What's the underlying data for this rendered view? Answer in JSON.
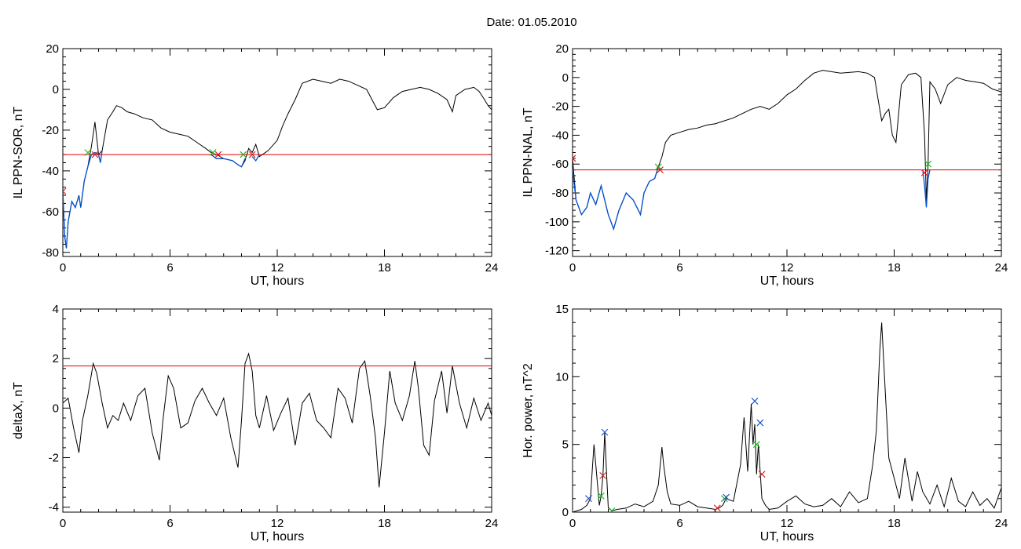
{
  "title": "Date:  01.05.2010",
  "colors": {
    "series_main": "#000000",
    "series_highlight": "#0050d0",
    "threshold": "#e00000",
    "marker_start": "#22bb22",
    "marker_end": "#dd2222",
    "marker_peak": "#2255cc"
  },
  "chart_data": [
    {
      "id": "ppn-sor",
      "type": "line",
      "xlabel": "UT, hours",
      "ylabel": "IL PPN-SOR, nT",
      "xlim": [
        0,
        24
      ],
      "ylim": [
        -82,
        20
      ],
      "xticks": [
        0,
        6,
        12,
        18,
        24
      ],
      "yticks": [
        -80,
        -60,
        -40,
        -20,
        0,
        20
      ],
      "threshold": -32,
      "series": [
        {
          "role": "main",
          "x": [
            0,
            0.1,
            0.2,
            0.3,
            0.5,
            0.7,
            0.9,
            1.0,
            1.2,
            1.4,
            1.6,
            1.7,
            1.8,
            2.0,
            2.2,
            2.5,
            2.8,
            3.0,
            3.3,
            3.6,
            4.0,
            4.5,
            5.0,
            5.5,
            6.0,
            6.5,
            7.0,
            7.5,
            8.0,
            8.3,
            8.6,
            9.0,
            9.5,
            9.8,
            10.0,
            10.2,
            10.4,
            10.6,
            10.8,
            11.0,
            11.5,
            12.0,
            12.3,
            12.6,
            13.0,
            13.4,
            14.0,
            14.5,
            15.0,
            15.5,
            16.0,
            16.5,
            17.0,
            17.3,
            17.6,
            18.0,
            18.5,
            19.0,
            19.5,
            20.0,
            20.5,
            21.0,
            21.5,
            21.8,
            22.0,
            22.5,
            23.0,
            23.3,
            23.6,
            23.8,
            24.0
          ],
          "y": [
            -48,
            -72,
            -78,
            -65,
            -55,
            -58,
            -52,
            -58,
            -45,
            -38,
            -28,
            -22,
            -16,
            -32,
            -30,
            -15,
            -11,
            -8,
            -9,
            -11,
            -12,
            -14,
            -15,
            -19,
            -21,
            -22,
            -23,
            -26,
            -29,
            -31,
            -32,
            -34,
            -35,
            -37,
            -38,
            -35,
            -29,
            -31,
            -27,
            -33,
            -30,
            -25,
            -18,
            -12,
            -5,
            3,
            5,
            4,
            3,
            5,
            4,
            2,
            0,
            -5,
            -10,
            -9,
            -4,
            -1,
            0,
            1,
            0,
            -2,
            -5,
            -11,
            -3,
            0,
            1,
            -1,
            -5,
            -8,
            -10
          ]
        },
        {
          "role": "highlight",
          "segments": [
            {
              "x": [
                0,
                0.1,
                0.2,
                0.3,
                0.5,
                0.7,
                0.9,
                1.0,
                1.2,
                1.4,
                1.6,
                1.8,
                2.0,
                2.1,
                2.2
              ],
              "y": [
                -50,
                -72,
                -78,
                -65,
                -55,
                -58,
                -52,
                -58,
                -45,
                -38,
                -32,
                -31,
                -32,
                -36,
                -30
              ]
            },
            {
              "x": [
                8.3,
                8.6,
                9.0,
                9.5,
                9.8,
                10.0,
                10.2
              ],
              "y": [
                -32,
                -34,
                -34,
                -35,
                -37,
                -38,
                -34
              ]
            },
            {
              "x": [
                10.6,
                10.8,
                11.0
              ],
              "y": [
                -33,
                -35,
                -32
              ]
            }
          ]
        }
      ],
      "markers": {
        "start": [
          [
            1.4,
            -31
          ],
          [
            8.4,
            -31
          ],
          [
            10.1,
            -32
          ]
        ],
        "end": [
          [
            1.8,
            -32
          ],
          [
            8.7,
            -32
          ],
          [
            10.6,
            -32
          ],
          [
            0,
            -50
          ]
        ]
      }
    },
    {
      "id": "ppn-nal",
      "type": "line",
      "xlabel": "UT, hours",
      "ylabel": "IL PPN-NAL, nT",
      "xlim": [
        0,
        24
      ],
      "ylim": [
        -124,
        20
      ],
      "xticks": [
        0,
        6,
        12,
        18,
        24
      ],
      "yticks": [
        -120,
        -100,
        -80,
        -60,
        -40,
        -20,
        0,
        20
      ],
      "threshold": -64,
      "series": [
        {
          "role": "main",
          "x": [
            0,
            0.2,
            0.5,
            0.8,
            1.0,
            1.3,
            1.6,
            2.0,
            2.3,
            2.6,
            3.0,
            3.4,
            3.8,
            4.0,
            4.3,
            4.6,
            4.8,
            5.0,
            5.2,
            5.5,
            6.0,
            6.5,
            7.0,
            7.5,
            8.0,
            8.5,
            9.0,
            9.5,
            10.0,
            10.5,
            11.0,
            11.5,
            12.0,
            12.5,
            13.0,
            13.5,
            14.0,
            15.0,
            16.0,
            16.5,
            16.9,
            17.1,
            17.3,
            17.5,
            17.7,
            17.9,
            18.1,
            18.4,
            18.8,
            19.2,
            19.5,
            19.7,
            19.8,
            19.9,
            20.0,
            20.3,
            20.6,
            21.0,
            21.5,
            22.0,
            22.5,
            23.0,
            23.5,
            24.0
          ],
          "y": [
            -56,
            -85,
            -95,
            -90,
            -80,
            -88,
            -75,
            -95,
            -105,
            -92,
            -80,
            -85,
            -95,
            -80,
            -72,
            -70,
            -62,
            -55,
            -45,
            -40,
            -38,
            -36,
            -35,
            -33,
            -32,
            -30,
            -28,
            -25,
            -22,
            -20,
            -22,
            -18,
            -12,
            -8,
            -2,
            3,
            5,
            3,
            4,
            3,
            0,
            -15,
            -30,
            -25,
            -22,
            -40,
            -45,
            -5,
            2,
            3,
            0,
            -40,
            -85,
            -60,
            -3,
            -8,
            -18,
            -5,
            0,
            -2,
            -3,
            -4,
            -8,
            -10
          ]
        },
        {
          "role": "highlight",
          "segments": [
            {
              "x": [
                0,
                0.2,
                0.5,
                0.8,
                1.0,
                1.3,
                1.6,
                2.0,
                2.3,
                2.6,
                3.0,
                3.4,
                3.8,
                4.0,
                4.3,
                4.6,
                4.8,
                5.0
              ],
              "y": [
                -64,
                -85,
                -95,
                -90,
                -80,
                -88,
                -75,
                -95,
                -105,
                -92,
                -80,
                -85,
                -95,
                -80,
                -72,
                -70,
                -62,
                -64
              ]
            },
            {
              "x": [
                19.6,
                19.7,
                19.8,
                19.9,
                20.0
              ],
              "y": [
                -64,
                -75,
                -90,
                -70,
                -64
              ]
            }
          ]
        }
      ],
      "markers": {
        "start": [
          [
            4.8,
            -62
          ],
          [
            19.9,
            -60
          ]
        ],
        "end": [
          [
            4.9,
            -64
          ],
          [
            19.7,
            -66
          ],
          [
            0,
            -56
          ]
        ]
      }
    },
    {
      "id": "deltax",
      "type": "line",
      "xlabel": "UT, hours",
      "ylabel": "deltaX, nT",
      "xlim": [
        0,
        24
      ],
      "ylim": [
        -4.2,
        4
      ],
      "xticks": [
        0,
        6,
        12,
        18,
        24
      ],
      "yticks": [
        -4,
        -2,
        0,
        2,
        4
      ],
      "threshold": 1.7,
      "series": [
        {
          "role": "main",
          "x": [
            0,
            0.3,
            0.6,
            0.9,
            1.1,
            1.4,
            1.7,
            1.9,
            2.2,
            2.5,
            2.8,
            3.1,
            3.4,
            3.8,
            4.2,
            4.6,
            5.0,
            5.4,
            5.6,
            5.9,
            6.2,
            6.6,
            7.0,
            7.4,
            7.8,
            8.2,
            8.6,
            9.0,
            9.4,
            9.8,
            10.0,
            10.2,
            10.4,
            10.6,
            10.8,
            11.0,
            11.4,
            11.8,
            12.2,
            12.6,
            13.0,
            13.4,
            13.8,
            14.2,
            14.6,
            15.0,
            15.4,
            15.8,
            16.2,
            16.6,
            16.9,
            17.2,
            17.5,
            17.7,
            18.0,
            18.3,
            18.6,
            19.0,
            19.4,
            19.7,
            19.9,
            20.2,
            20.5,
            20.8,
            21.2,
            21.5,
            21.8,
            22.2,
            22.6,
            23.0,
            23.4,
            23.8,
            24.0
          ],
          "y": [
            0.2,
            0.4,
            -0.8,
            -1.8,
            -0.5,
            0.5,
            1.8,
            1.4,
            0.2,
            -0.8,
            -0.3,
            -0.5,
            0.2,
            -0.5,
            0.5,
            0.8,
            -1.0,
            -2.1,
            -0.5,
            1.3,
            0.8,
            -0.8,
            -0.6,
            0.3,
            0.8,
            0.2,
            -0.3,
            0.4,
            -1.2,
            -2.4,
            -0.5,
            1.8,
            2.2,
            1.5,
            -0.3,
            -0.8,
            0.5,
            -0.9,
            -0.2,
            0.4,
            -1.5,
            0.2,
            0.6,
            -0.5,
            -0.8,
            -1.2,
            0.8,
            0.4,
            -0.6,
            1.6,
            1.9,
            0.5,
            -1.2,
            -3.2,
            -1.0,
            1.5,
            0.2,
            -0.5,
            0.5,
            1.9,
            0.8,
            -1.5,
            -1.9,
            0.3,
            1.5,
            -0.2,
            1.7,
            0.2,
            -0.8,
            0.4,
            -0.5,
            0.2,
            -0.3
          ]
        }
      ]
    },
    {
      "id": "hor-power",
      "type": "line",
      "xlabel": "UT, hours",
      "ylabel": "Hor. power, nT^2",
      "xlim": [
        0,
        24
      ],
      "ylim": [
        0,
        15
      ],
      "xticks": [
        0,
        6,
        12,
        18,
        24
      ],
      "yticks": [
        0,
        5,
        10,
        15
      ],
      "series": [
        {
          "role": "main",
          "x": [
            0,
            0.5,
            0.8,
            1.0,
            1.1,
            1.2,
            1.3,
            1.5,
            1.6,
            1.7,
            1.8,
            1.9,
            2.0,
            2.2,
            2.5,
            3.0,
            3.5,
            4.0,
            4.5,
            4.8,
            5.0,
            5.1,
            5.3,
            5.5,
            6.0,
            6.5,
            7.0,
            7.5,
            8.0,
            8.2,
            8.4,
            8.6,
            9.0,
            9.4,
            9.6,
            9.8,
            10.0,
            10.1,
            10.2,
            10.3,
            10.4,
            10.5,
            10.6,
            10.8,
            11.0,
            11.5,
            12.0,
            12.5,
            13.0,
            13.5,
            14.0,
            14.5,
            15.0,
            15.5,
            16.0,
            16.5,
            16.8,
            17.0,
            17.2,
            17.3,
            17.5,
            17.7,
            18.0,
            18.3,
            18.6,
            19.0,
            19.3,
            19.6,
            20.0,
            20.4,
            20.8,
            21.2,
            21.6,
            22.0,
            22.4,
            22.8,
            23.2,
            23.6,
            24.0
          ],
          "y": [
            0,
            0.2,
            0.5,
            1.0,
            3.0,
            5.0,
            3.5,
            0.5,
            1.2,
            2.7,
            5.9,
            3.0,
            0.3,
            0.1,
            0.2,
            0.3,
            0.6,
            0.4,
            0.8,
            2.0,
            4.8,
            3.5,
            1.5,
            0.6,
            0.5,
            0.8,
            0.4,
            0.3,
            0.2,
            0.3,
            0.5,
            1.0,
            0.8,
            3.5,
            7.0,
            3.0,
            8.0,
            5.0,
            6.5,
            2.8,
            5.0,
            3.0,
            1.0,
            0.5,
            0.2,
            0.3,
            0.8,
            1.2,
            0.6,
            0.4,
            0.5,
            1.0,
            0.4,
            1.5,
            0.7,
            1.0,
            3.5,
            6.0,
            12.0,
            14.0,
            9.0,
            4.0,
            2.5,
            1.0,
            4.0,
            0.8,
            3.0,
            1.5,
            0.6,
            2.0,
            0.4,
            2.5,
            0.8,
            0.4,
            1.5,
            0.5,
            1.0,
            0.3,
            1.8
          ]
        }
      ],
      "markers": {
        "start": [
          [
            1.6,
            1.2
          ],
          [
            8.5,
            1.0
          ],
          [
            10.3,
            5.0
          ],
          [
            2.2,
            0.1
          ]
        ],
        "end": [
          [
            1.7,
            2.7
          ],
          [
            8.1,
            0.3
          ],
          [
            10.6,
            2.8
          ]
        ],
        "peak": [
          [
            0.9,
            1.0
          ],
          [
            1.8,
            5.9
          ],
          [
            8.6,
            1.1
          ],
          [
            10.2,
            8.2
          ],
          [
            10.5,
            6.6
          ]
        ]
      }
    }
  ]
}
